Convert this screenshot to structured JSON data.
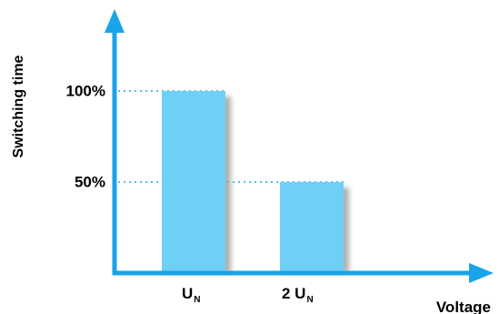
{
  "colors": {
    "axis": "#1aa3e8",
    "bar": "#6fd0f7",
    "shadow": "#9a9a9a",
    "text": "#000000"
  },
  "chart_data": {
    "type": "bar",
    "categories": [
      {
        "main": "U",
        "sub": "N"
      },
      {
        "main": "2 U",
        "sub": "N"
      }
    ],
    "values": [
      100,
      50
    ],
    "ylim": [
      0,
      140
    ],
    "xlabel": "Voltage",
    "ylabel": "Switching time",
    "yticks": [
      {
        "value": 100,
        "label": "100%"
      },
      {
        "value": 50,
        "label": "50%"
      }
    ],
    "grid": false,
    "legend": "none"
  }
}
